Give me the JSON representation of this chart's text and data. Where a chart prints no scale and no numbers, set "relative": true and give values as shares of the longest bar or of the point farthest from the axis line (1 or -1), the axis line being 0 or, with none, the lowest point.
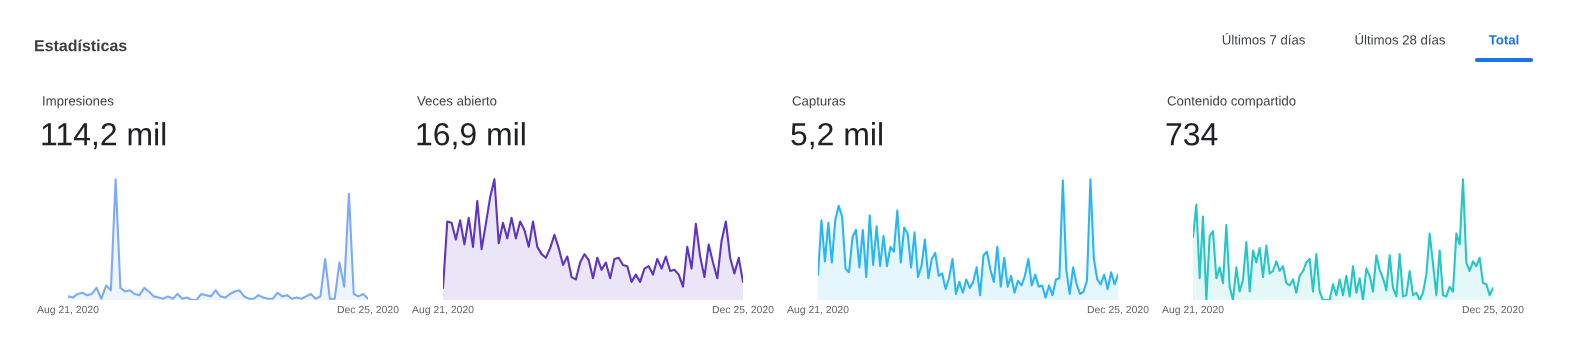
{
  "chart_data": [
    {
      "type": "other",
      "title": "Estadísticas",
      "annotations": [
        "Últimos 7 días",
        "Últimos 28 días",
        "Total"
      ]
    },
    {
      "type": "area",
      "title": "Impresiones",
      "subtitle": "114,2 mil",
      "relative": true,
      "color": "#7baaf7",
      "categories": [
        "Aug 21, 2020",
        null,
        null,
        null,
        null,
        null,
        null,
        null,
        null,
        null,
        null,
        null,
        null,
        null,
        null,
        null,
        null,
        null,
        null,
        null,
        null,
        null,
        null,
        null,
        null,
        null,
        null,
        null,
        null,
        null,
        null,
        null,
        null,
        null,
        null,
        null,
        null,
        null,
        null,
        null,
        null,
        null,
        null,
        null,
        null,
        null,
        null,
        null,
        null,
        null,
        null,
        null,
        null,
        null,
        null,
        null,
        null,
        null,
        null,
        null,
        null,
        null,
        null,
        "Dec 25, 2020"
      ],
      "values": [
        0.03,
        0.02,
        0.05,
        0.06,
        0.04,
        0.05,
        0.1,
        0.01,
        0.12,
        0.08,
        1.0,
        0.1,
        0.07,
        0.08,
        0.05,
        0.04,
        0.1,
        0.07,
        0.03,
        0.02,
        0.01,
        0.03,
        0.01,
        0.05,
        0.01,
        0.02,
        0.0,
        0.0,
        0.05,
        0.04,
        0.03,
        0.08,
        0.03,
        0.02,
        0.05,
        0.07,
        0.08,
        0.03,
        0.01,
        0.01,
        0.04,
        0.02,
        0.01,
        0.01,
        0.06,
        0.03,
        0.04,
        0.01,
        0.02,
        0.01,
        0.03,
        0.05,
        0.01,
        0.03,
        0.34,
        0.01,
        0.01,
        0.31,
        0.11,
        0.88,
        0.05,
        0.03,
        0.05,
        0.01
      ]
    },
    {
      "type": "area",
      "title": "Veces abierto",
      "subtitle": "16,9 mil",
      "relative": true,
      "color": "#5e35c1",
      "categories": [
        "Aug 21, 2020",
        null,
        null,
        null,
        null,
        null,
        null,
        null,
        null,
        null,
        null,
        null,
        null,
        null,
        null,
        null,
        null,
        null,
        null,
        null,
        null,
        null,
        null,
        null,
        null,
        null,
        null,
        null,
        null,
        null,
        null,
        null,
        null,
        null,
        null,
        null,
        null,
        null,
        null,
        null,
        null,
        null,
        null,
        null,
        null,
        null,
        null,
        null,
        null,
        null,
        null,
        null,
        null,
        null,
        null,
        null,
        null,
        null,
        null,
        null,
        null,
        null,
        null,
        null,
        null,
        null,
        null,
        null,
        null,
        null,
        "Dec 25, 2020"
      ],
      "values": [
        0.1,
        0.65,
        0.64,
        0.5,
        0.66,
        0.46,
        0.68,
        0.44,
        0.82,
        0.42,
        0.63,
        0.85,
        1.0,
        0.47,
        0.64,
        0.51,
        0.68,
        0.51,
        0.65,
        0.58,
        0.44,
        0.65,
        0.44,
        0.38,
        0.35,
        0.43,
        0.54,
        0.43,
        0.29,
        0.36,
        0.19,
        0.17,
        0.31,
        0.38,
        0.33,
        0.18,
        0.35,
        0.25,
        0.31,
        0.18,
        0.34,
        0.35,
        0.29,
        0.28,
        0.15,
        0.21,
        0.15,
        0.26,
        0.28,
        0.21,
        0.34,
        0.26,
        0.36,
        0.24,
        0.25,
        0.21,
        0.11,
        0.44,
        0.26,
        0.63,
        0.36,
        0.19,
        0.46,
        0.31,
        0.18,
        0.49,
        0.65,
        0.35,
        0.22,
        0.35,
        0.15
      ]
    },
    {
      "type": "area",
      "title": "Capturas",
      "subtitle": "5,2 mil",
      "relative": true,
      "color": "#29b6f6",
      "categories": [
        "Aug 21, 2020",
        null,
        null,
        null,
        null,
        null,
        null,
        null,
        null,
        null,
        null,
        null,
        null,
        null,
        null,
        null,
        null,
        null,
        null,
        null,
        null,
        null,
        null,
        null,
        null,
        null,
        null,
        null,
        null,
        null,
        null,
        null,
        null,
        null,
        null,
        null,
        null,
        null,
        null,
        null,
        null,
        null,
        null,
        null,
        null,
        null,
        null,
        null,
        null,
        null,
        null,
        null,
        null,
        null,
        null,
        null,
        null,
        null,
        null,
        null,
        null,
        null,
        null,
        null,
        null,
        null,
        null,
        null,
        null,
        null,
        null,
        null,
        null,
        null,
        null,
        null,
        null,
        null,
        null,
        null,
        null,
        null,
        null,
        null,
        null,
        null,
        null,
        "Dec 25, 2020"
      ],
      "values": [
        0.21,
        0.66,
        0.32,
        0.64,
        0.31,
        0.66,
        0.78,
        0.69,
        0.26,
        0.23,
        0.52,
        0.58,
        0.27,
        0.58,
        0.19,
        0.7,
        0.29,
        0.61,
        0.28,
        0.53,
        0.28,
        0.44,
        0.4,
        0.74,
        0.31,
        0.6,
        0.55,
        0.27,
        0.56,
        0.19,
        0.28,
        0.5,
        0.18,
        0.34,
        0.39,
        0.2,
        0.22,
        0.09,
        0.18,
        0.34,
        0.05,
        0.15,
        0.06,
        0.17,
        0.1,
        0.15,
        0.27,
        0.04,
        0.37,
        0.4,
        0.25,
        0.15,
        0.44,
        0.11,
        0.35,
        0.11,
        0.2,
        0.06,
        0.16,
        0.12,
        0.2,
        0.34,
        0.12,
        0.21,
        0.11,
        0.12,
        0.02,
        0.12,
        0.04,
        0.17,
        0.18,
        0.99,
        0.25,
        0.05,
        0.27,
        0.13,
        0.05,
        0.07,
        0.16,
        1.0,
        0.34,
        0.17,
        0.13,
        0.21,
        0.09,
        0.23,
        0.13,
        0.21
      ]
    },
    {
      "type": "area",
      "title": "Contenido compartido",
      "subtitle": "734",
      "relative": true,
      "color": "#26c6c6",
      "categories": [
        "Aug 21, 2020",
        null,
        null,
        null,
        null,
        null,
        null,
        null,
        null,
        null,
        null,
        null,
        null,
        null,
        null,
        null,
        null,
        null,
        null,
        null,
        null,
        null,
        null,
        null,
        null,
        null,
        null,
        null,
        null,
        null,
        null,
        null,
        null,
        null,
        null,
        null,
        null,
        null,
        null,
        null,
        null,
        null,
        null,
        null,
        null,
        null,
        null,
        null,
        null,
        null,
        null,
        null,
        null,
        null,
        null,
        null,
        null,
        null,
        null,
        null,
        null,
        null,
        null,
        null,
        null,
        null,
        null,
        null,
        null,
        null,
        null,
        null,
        null,
        null,
        null,
        null,
        null,
        null,
        null,
        null,
        null,
        null,
        null,
        null,
        null,
        null,
        null,
        null,
        null,
        null,
        "Dec 25, 2020"
      ],
      "values": [
        0.52,
        0.79,
        0.18,
        0.69,
        0.0,
        0.53,
        0.57,
        0.18,
        0.27,
        0.14,
        0.62,
        0.11,
        0.0,
        0.27,
        0.07,
        0.17,
        0.48,
        0.07,
        0.41,
        0.31,
        0.43,
        0.19,
        0.45,
        0.22,
        0.24,
        0.32,
        0.24,
        0.28,
        0.14,
        0.12,
        0.17,
        0.06,
        0.2,
        0.24,
        0.31,
        0.34,
        0.07,
        0.38,
        0.07,
        0.0,
        0.0,
        0.0,
        0.13,
        0.04,
        0.17,
        0.04,
        0.2,
        0.03,
        0.28,
        0.06,
        0.18,
        0.0,
        0.26,
        0.2,
        0.07,
        0.37,
        0.25,
        0.18,
        0.08,
        0.37,
        0.1,
        0.03,
        0.38,
        0.03,
        0.04,
        0.24,
        0.04,
        0.06,
        0.0,
        0.06,
        0.21,
        0.55,
        0.3,
        0.04,
        0.41,
        0.04,
        0.03,
        0.11,
        0.07,
        0.55,
        0.46,
        1.0,
        0.31,
        0.24,
        0.32,
        0.28,
        0.35,
        0.14,
        0.13,
        0.04,
        0.1
      ]
    }
  ]
}
